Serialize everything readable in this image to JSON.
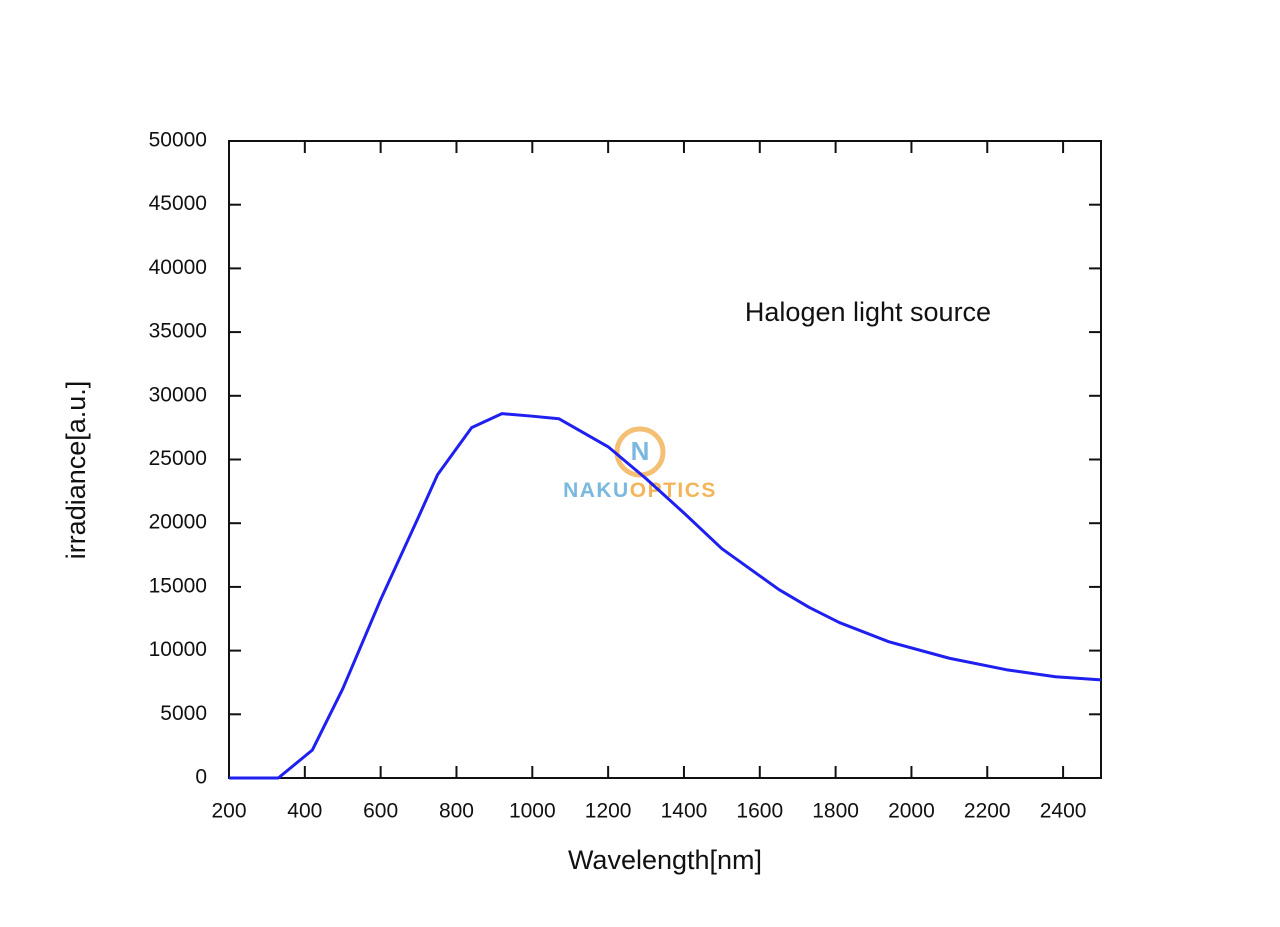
{
  "chart_data": {
    "type": "line",
    "xlabel": "Wavelength[nm]",
    "ylabel": "irradiance[a.u.]",
    "annotation": "Halogen light source",
    "watermark": "NAKUOPTICS",
    "logo_letter": "N",
    "x": [
      200,
      330,
      420,
      500,
      600,
      700,
      750,
      840,
      920,
      1000,
      1070,
      1200,
      1300,
      1400,
      1500,
      1650,
      1730,
      1810,
      1940,
      2100,
      2250,
      2380,
      2500
    ],
    "series": [
      {
        "color": "#1f1ff0",
        "values": [
          0,
          0,
          2200,
          7000,
          14000,
          20500,
          23800,
          27500,
          28600,
          28400,
          28200,
          26000,
          23500,
          20800,
          18000,
          14800,
          13400,
          12200,
          10700,
          9400,
          8500,
          7950,
          7700
        ]
      }
    ],
    "xlim": [
      200,
      2500
    ],
    "xticks": [
      200,
      400,
      600,
      800,
      1000,
      1200,
      1400,
      1600,
      1800,
      2000,
      2200,
      2400
    ],
    "ylim": [
      0,
      50000
    ],
    "yticks": [
      0,
      5000,
      10000,
      15000,
      20000,
      25000,
      30000,
      35000,
      40000,
      45000,
      50000
    ],
    "grid": false
  }
}
